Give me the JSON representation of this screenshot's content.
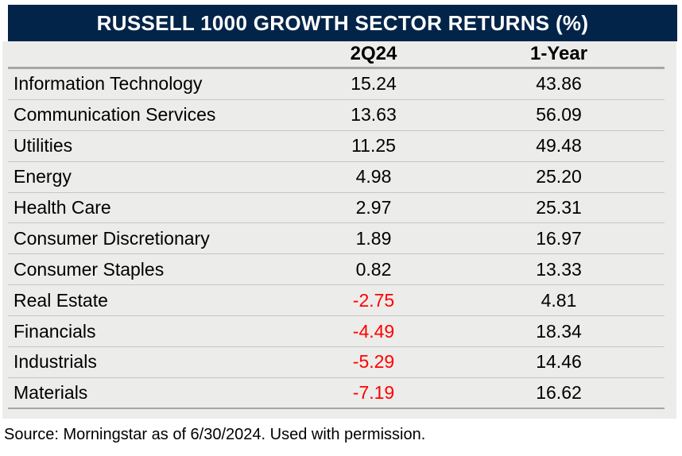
{
  "title": "RUSSELL 1000 GROWTH SECTOR RETURNS (%)",
  "source": "Source: Morningstar as of 6/30/2024. Used with permission.",
  "colors": {
    "title_bar_bg": "#032449",
    "title_text": "#ffffff",
    "table_body_bg": "#ececea",
    "thin_rule": "#c6c6c6",
    "thick_rule": "#a6a6a6",
    "negative_value": "#ff0000",
    "text": "#000000"
  },
  "table": {
    "columns": {
      "sector": "",
      "q2": "2Q24",
      "year1": "1-Year"
    },
    "rows": [
      {
        "sector": "Information Technology",
        "q2": "15.24",
        "year1": "43.86"
      },
      {
        "sector": "Communication Services",
        "q2": "13.63",
        "year1": "56.09"
      },
      {
        "sector": "Utilities",
        "q2": "11.25",
        "year1": "49.48"
      },
      {
        "sector": "Energy",
        "q2": "4.98",
        "year1": "25.20"
      },
      {
        "sector": "Health Care",
        "q2": "2.97",
        "year1": "25.31"
      },
      {
        "sector": "Consumer Discretionary",
        "q2": "1.89",
        "year1": "16.97"
      },
      {
        "sector": "Consumer Staples",
        "q2": "0.82",
        "year1": "13.33"
      },
      {
        "sector": "Real Estate",
        "q2": "-2.75",
        "year1": "4.81"
      },
      {
        "sector": "Financials",
        "q2": "-4.49",
        "year1": "18.34"
      },
      {
        "sector": "Industrials",
        "q2": "-5.29",
        "year1": "14.46"
      },
      {
        "sector": "Materials",
        "q2": "-7.19",
        "year1": "16.62"
      }
    ]
  },
  "chart_data": {
    "type": "table",
    "title": "RUSSELL 1000 GROWTH SECTOR RETURNS (%)",
    "categories": [
      "Information Technology",
      "Communication Services",
      "Utilities",
      "Energy",
      "Health Care",
      "Consumer Discretionary",
      "Consumer Staples",
      "Real Estate",
      "Financials",
      "Industrials",
      "Materials"
    ],
    "series": [
      {
        "name": "2Q24",
        "values": [
          15.24,
          13.63,
          11.25,
          4.98,
          2.97,
          1.89,
          0.82,
          -2.75,
          -4.49,
          -5.29,
          -7.19
        ]
      },
      {
        "name": "1-Year",
        "values": [
          43.86,
          56.09,
          49.48,
          25.2,
          25.31,
          16.97,
          13.33,
          4.81,
          18.34,
          14.46,
          16.62
        ]
      }
    ],
    "annotations": [
      "Source: Morningstar as of 6/30/2024. Used with permission."
    ],
    "layout_hints": {
      "negative_values_red": true,
      "numeric_columns_center_aligned": true
    }
  }
}
